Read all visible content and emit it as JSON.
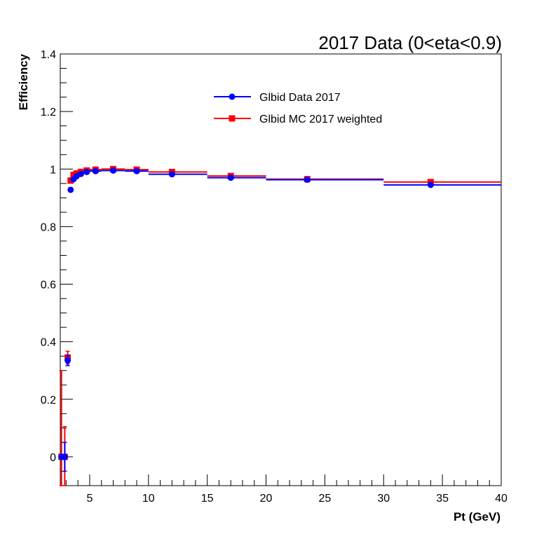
{
  "chart_data": {
    "type": "scatter",
    "title": "2017 Data (0<eta<0.9)",
    "xlabel": "Pt (GeV)",
    "ylabel": "Efficiency",
    "xlim": [
      2.5,
      40
    ],
    "ylim": [
      -0.1,
      1.4
    ],
    "xticks": [
      "5",
      "10",
      "15",
      "20",
      "25",
      "30",
      "35",
      "40"
    ],
    "yticks": [
      "0",
      "0.2",
      "0.4",
      "0.6",
      "0.8",
      "1",
      "1.2",
      "1.4"
    ],
    "grid": false,
    "legend": "top-center",
    "series": [
      {
        "name": "Glbid Data 2017",
        "color": "#0000ff",
        "marker": "circle",
        "points": [
          {
            "x": 2.6,
            "xlo": 2.5,
            "xhi": 2.75,
            "y": 0.0,
            "err": 0.005
          },
          {
            "x": 2.88,
            "xlo": 2.75,
            "xhi": 3.0,
            "y": 0.0,
            "err": 0.05
          },
          {
            "x": 3.13,
            "xlo": 3.0,
            "xhi": 3.25,
            "y": 0.335,
            "err": 0.018
          },
          {
            "x": 3.38,
            "xlo": 3.25,
            "xhi": 3.5,
            "y": 0.928,
            "err": 0.005
          },
          {
            "x": 3.63,
            "xlo": 3.5,
            "xhi": 3.75,
            "y": 0.965,
            "err": 0.004
          },
          {
            "x": 3.88,
            "xlo": 3.75,
            "xhi": 4.0,
            "y": 0.975,
            "err": 0.003
          },
          {
            "x": 4.25,
            "xlo": 4.0,
            "xhi": 4.5,
            "y": 0.983,
            "err": 0.003
          },
          {
            "x": 4.75,
            "xlo": 4.5,
            "xhi": 5.0,
            "y": 0.99,
            "err": 0.002
          },
          {
            "x": 5.5,
            "xlo": 5.0,
            "xhi": 6.0,
            "y": 0.993,
            "err": 0.002
          },
          {
            "x": 7.0,
            "xlo": 6.0,
            "xhi": 8.0,
            "y": 0.995,
            "err": 0.002
          },
          {
            "x": 9.0,
            "xlo": 8.0,
            "xhi": 10.0,
            "y": 0.993,
            "err": 0.002
          },
          {
            "x": 12.0,
            "xlo": 10.0,
            "xhi": 15.0,
            "y": 0.982,
            "err": 0.002
          },
          {
            "x": 17.0,
            "xlo": 15.0,
            "xhi": 20.0,
            "y": 0.97,
            "err": 0.002
          },
          {
            "x": 23.5,
            "xlo": 20.0,
            "xhi": 30.0,
            "y": 0.963,
            "err": 0.002
          },
          {
            "x": 34.0,
            "xlo": 30.0,
            "xhi": 40.0,
            "y": 0.945,
            "err": 0.003
          }
        ]
      },
      {
        "name": "Glbid MC 2017 weighted",
        "color": "#ff0000",
        "marker": "square",
        "points": [
          {
            "x": 2.6,
            "xlo": 2.5,
            "xhi": 2.75,
            "y": 0.0,
            "err": 0.3
          },
          {
            "x": 2.88,
            "xlo": 2.75,
            "xhi": 3.0,
            "y": 0.0,
            "err": 0.105
          },
          {
            "x": 3.13,
            "xlo": 3.0,
            "xhi": 3.25,
            "y": 0.345,
            "err": 0.022
          },
          {
            "x": 3.38,
            "xlo": 3.25,
            "xhi": 3.5,
            "y": 0.96,
            "err": 0.005
          },
          {
            "x": 3.63,
            "xlo": 3.5,
            "xhi": 3.75,
            "y": 0.98,
            "err": 0.004
          },
          {
            "x": 3.88,
            "xlo": 3.75,
            "xhi": 4.0,
            "y": 0.985,
            "err": 0.003
          },
          {
            "x": 4.25,
            "xlo": 4.0,
            "xhi": 4.5,
            "y": 0.99,
            "err": 0.003
          },
          {
            "x": 4.75,
            "xlo": 4.5,
            "xhi": 5.0,
            "y": 0.995,
            "err": 0.002
          },
          {
            "x": 5.5,
            "xlo": 5.0,
            "xhi": 6.0,
            "y": 0.998,
            "err": 0.002
          },
          {
            "x": 7.0,
            "xlo": 6.0,
            "xhi": 8.0,
            "y": 1.0,
            "err": 0.002
          },
          {
            "x": 9.0,
            "xlo": 8.0,
            "xhi": 10.0,
            "y": 0.998,
            "err": 0.002
          },
          {
            "x": 12.0,
            "xlo": 10.0,
            "xhi": 15.0,
            "y": 0.99,
            "err": 0.002
          },
          {
            "x": 17.0,
            "xlo": 15.0,
            "xhi": 20.0,
            "y": 0.976,
            "err": 0.002
          },
          {
            "x": 23.5,
            "xlo": 20.0,
            "xhi": 30.0,
            "y": 0.965,
            "err": 0.002
          },
          {
            "x": 34.0,
            "xlo": 30.0,
            "xhi": 40.0,
            "y": 0.955,
            "err": 0.003
          }
        ]
      }
    ]
  }
}
